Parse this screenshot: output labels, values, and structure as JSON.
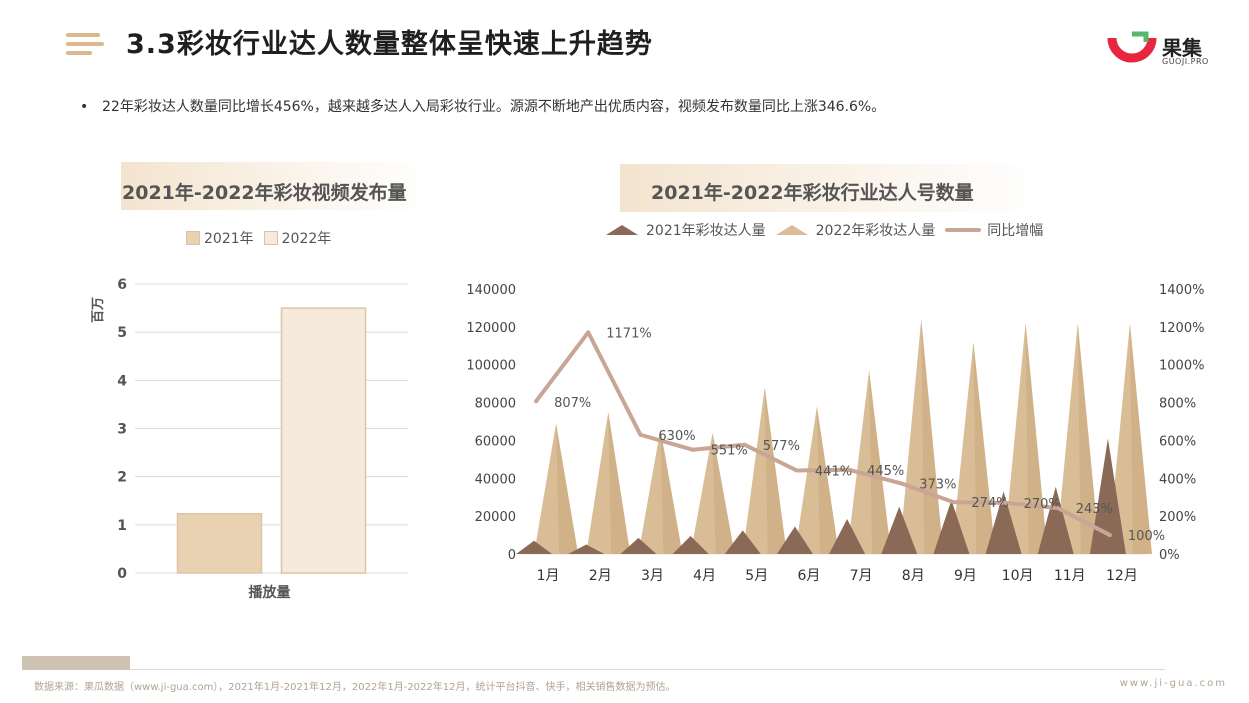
{
  "header": {
    "title": "3.3彩妆行业达人数量整体呈快速上升趋势",
    "logo_text": "果集",
    "logo_sub": "GUOJI.PRO"
  },
  "bullet": {
    "text": "22年彩妆达人数量同比增长456%，越来越多达人入局彩妆行业。源源不断地产出优质内容，视频发布数量同比上涨346.6%。"
  },
  "colors": {
    "accent": "#d9b98d",
    "bar_2021": "#e8d2b2",
    "bar_2022": "#f5eadb",
    "tri_2021": "#8a6a56",
    "tri_2022": "#d9bd96",
    "line": "#c9a595",
    "logo_red": "#e8243f",
    "logo_green": "#56b86a"
  },
  "chart_left_ui": {
    "title": "2021年-2022年彩妆视频发布量",
    "legend": [
      "2021年",
      "2022年"
    ],
    "ylabel": "百万",
    "xlabel": "播放量"
  },
  "chart_right_ui": {
    "title": "2021年-2022年彩妆行业达人号数量",
    "legend": [
      "2021年彩妆达人量",
      "2022年彩妆达人量",
      "同比增幅"
    ]
  },
  "chart_data": [
    {
      "type": "bar",
      "title": "2021年-2022年彩妆视频发布量",
      "categories": [
        "播放量"
      ],
      "series": [
        {
          "name": "2021年",
          "values": [
            1.23
          ]
        },
        {
          "name": "2022年",
          "values": [
            5.5
          ]
        }
      ],
      "ylabel": "百万",
      "ylim": [
        0,
        6
      ],
      "yticks": [
        "0",
        "1",
        "2",
        "3",
        "4",
        "5",
        "6"
      ],
      "grid": true,
      "legend": "top"
    },
    {
      "type": "bar",
      "title": "2021年-2022年彩妆行业达人号数量",
      "categories": [
        "1月",
        "2月",
        "3月",
        "4月",
        "5月",
        "6月",
        "7月",
        "8月",
        "9月",
        "10月",
        "11月",
        "12月"
      ],
      "series": [
        {
          "name": "2021年彩妆达人量",
          "values": [
            7000,
            5000,
            8500,
            9500,
            12500,
            14500,
            18500,
            25000,
            28500,
            33000,
            35500,
            61000
          ]
        },
        {
          "name": "2022年彩妆达人量",
          "values": [
            69000,
            75000,
            66000,
            64000,
            88000,
            78000,
            97000,
            124000,
            112000,
            122000,
            122000,
            122000
          ]
        },
        {
          "name": "同比增幅",
          "axis": "right",
          "values": [
            807,
            1171,
            630,
            551,
            577,
            441,
            445,
            373,
            274,
            270,
            243,
            100
          ]
        }
      ],
      "data_labels": [
        "807%",
        "1171%",
        "630%",
        "551%",
        "577%",
        "441%",
        "445%",
        "373%",
        "274%",
        "270%",
        "243%",
        "100%"
      ],
      "ylim": [
        0,
        140000
      ],
      "yticks": [
        "0",
        "20000",
        "40000",
        "60000",
        "80000",
        "100000",
        "120000",
        "140000"
      ],
      "y2lim": [
        0,
        1400
      ],
      "y2ticks": [
        "0%",
        "200%",
        "400%",
        "600%",
        "800%",
        "1000%",
        "1200%",
        "1400%"
      ],
      "grid": false,
      "legend": "top"
    }
  ],
  "footer": {
    "source": "数据来源：果瓜数据（www.ji-gua.com），2021年1月-2021年12月，2022年1月-2022年12月，统计平台抖音、快手，相关销售数据为预估。",
    "url": "www.ji-gua.com"
  }
}
